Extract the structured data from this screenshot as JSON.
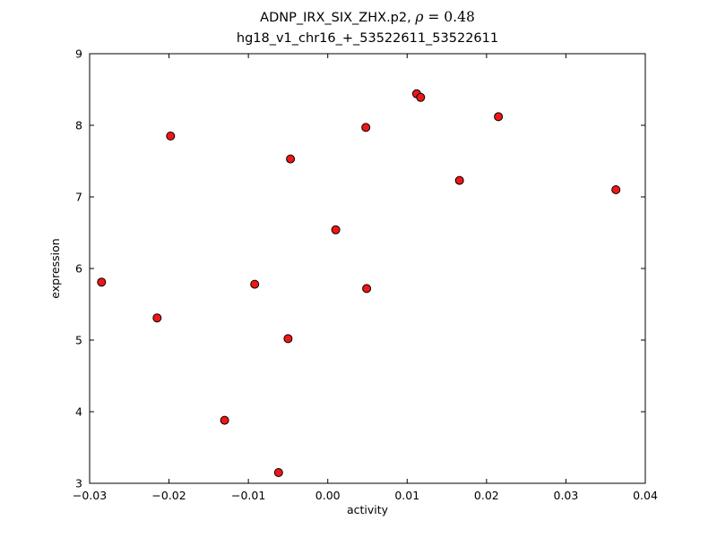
{
  "title": {
    "prefix": "ADNP_IRX_SIX_ZHX.p2, ",
    "rho_symbol": "ρ",
    "rho_rest": " = 0.48",
    "line2": "hg18_v1_chr16_+_53522611_53522611"
  },
  "chart_data": {
    "type": "scatter",
    "title": "ADNP_IRX_SIX_ZHX.p2, ρ = 0.48\nhg18_v1_chr16_+_53522611_53522611",
    "rho": 0.48,
    "xlabel": "activity",
    "ylabel": "expression",
    "xlim": [
      -0.03,
      0.04
    ],
    "ylim": [
      3,
      9
    ],
    "xticks": [
      -0.03,
      -0.02,
      -0.01,
      0.0,
      0.01,
      0.02,
      0.03,
      0.04
    ],
    "xtick_labels": [
      "−0.03",
      "−0.02",
      "−0.01",
      "0.00",
      "0.01",
      "0.02",
      "0.03",
      "0.04"
    ],
    "yticks": [
      3,
      4,
      5,
      6,
      7,
      8,
      9
    ],
    "ytick_labels": [
      "3",
      "4",
      "5",
      "6",
      "7",
      "8",
      "9"
    ],
    "grid": false,
    "legend": "none",
    "marker_color": "#f01616",
    "marker_edge_color": "#000000",
    "points": [
      [
        -0.0285,
        5.81
      ],
      [
        -0.0215,
        5.31
      ],
      [
        -0.0198,
        7.85
      ],
      [
        -0.013,
        3.88
      ],
      [
        -0.0092,
        5.78
      ],
      [
        -0.0062,
        3.15
      ],
      [
        -0.005,
        5.02
      ],
      [
        -0.0047,
        7.53
      ],
      [
        0.001,
        6.54
      ],
      [
        0.0048,
        7.97
      ],
      [
        0.0049,
        5.72
      ],
      [
        0.0112,
        8.44
      ],
      [
        0.0117,
        8.39
      ],
      [
        0.0166,
        7.23
      ],
      [
        0.0215,
        8.12
      ],
      [
        0.0363,
        7.1
      ]
    ]
  }
}
